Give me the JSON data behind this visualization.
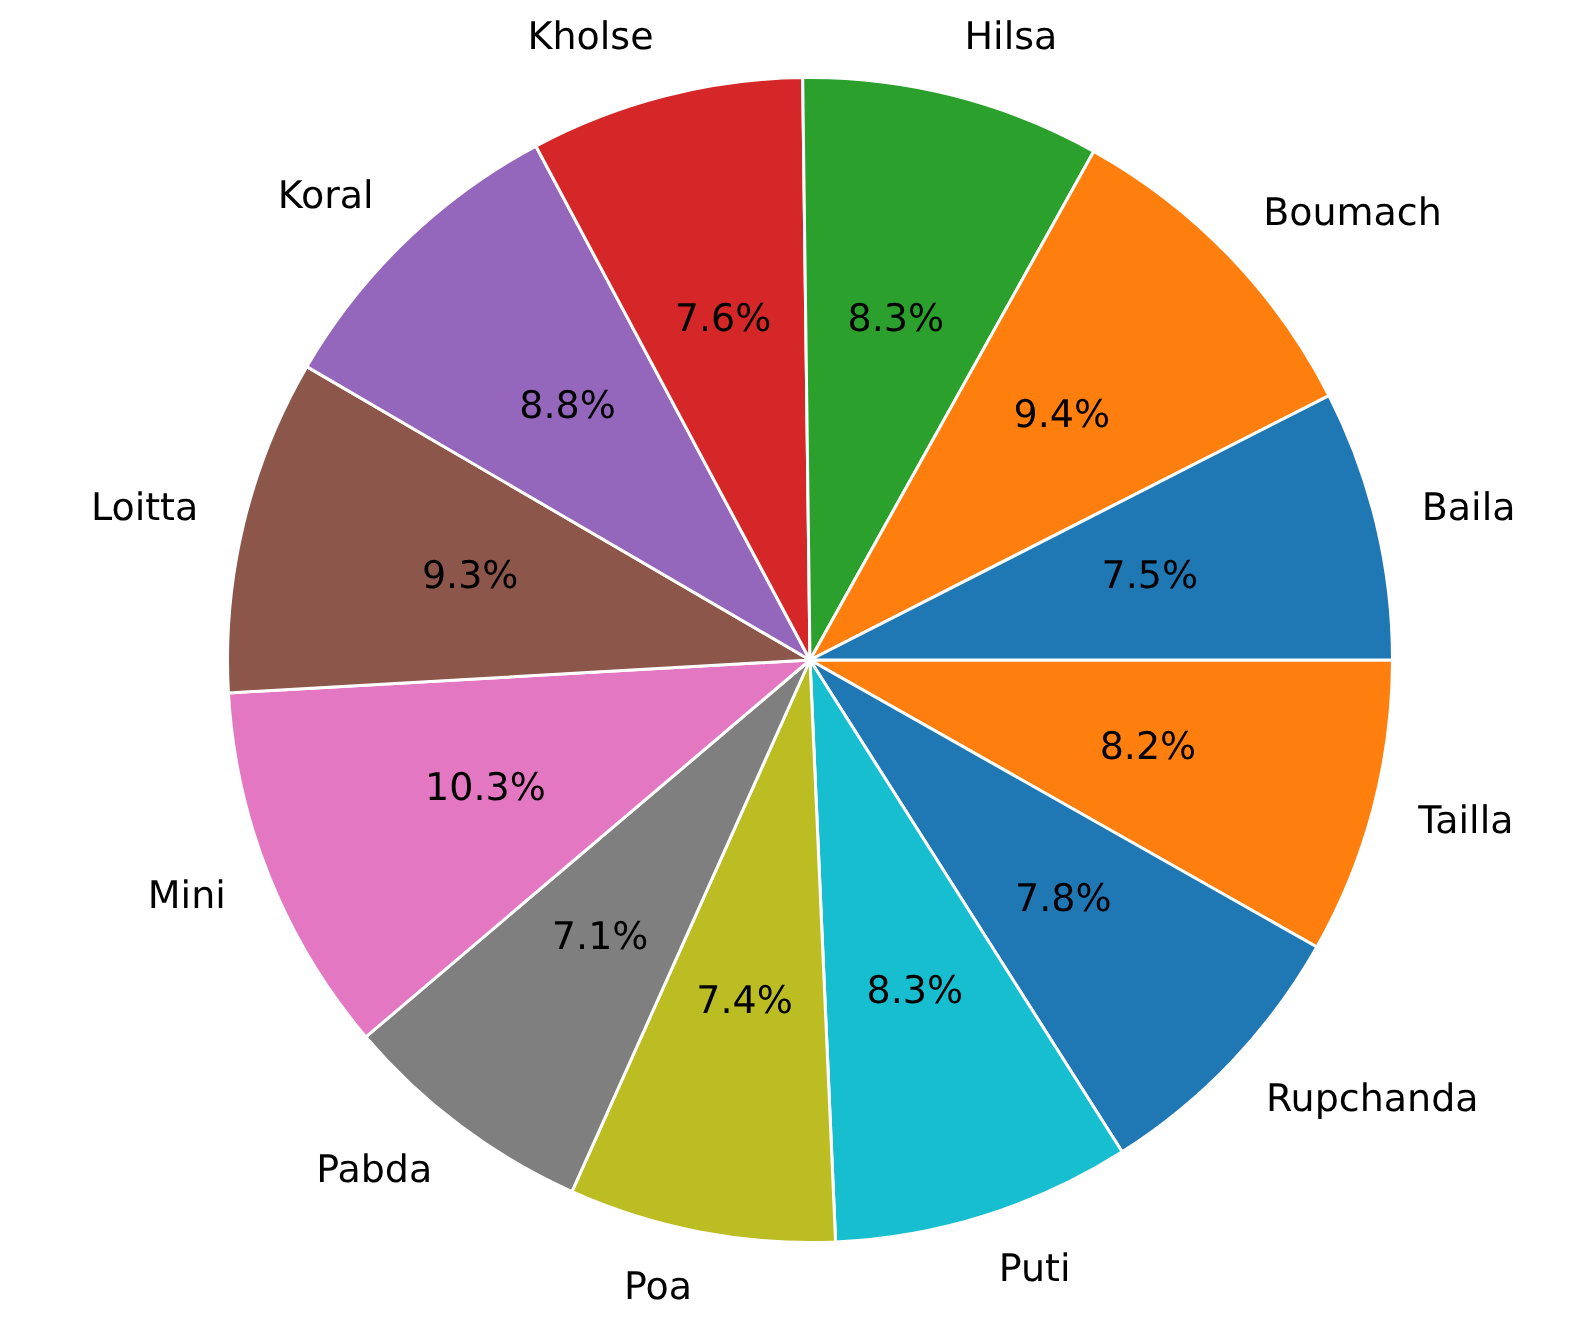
{
  "chart_data": {
    "type": "pie",
    "categories": [
      "Baila",
      "Boumach",
      "Hilsa",
      "Kholse",
      "Koral",
      "Loitta",
      "Mini",
      "Pabda",
      "Poa",
      "Puti",
      "Rupchanda",
      "Tailla"
    ],
    "values": [
      7.5,
      9.4,
      8.3,
      7.6,
      8.8,
      9.3,
      10.3,
      7.1,
      7.4,
      8.3,
      7.8,
      8.2
    ],
    "value_labels": [
      "7.5%",
      "9.4%",
      "8.3%",
      "7.6%",
      "8.8%",
      "9.3%",
      "10.3%",
      "7.1%",
      "7.4%",
      "8.3%",
      "7.8%",
      "8.2%"
    ],
    "colors": [
      "#1f77b4",
      "#ff7f0e",
      "#2ca02c",
      "#d62728",
      "#9467bd",
      "#8c564b",
      "#e377c2",
      "#7f7f7f",
      "#bcbd22",
      "#17becf",
      "#1f77b4",
      "#ff7f0e"
    ],
    "legend": false
  }
}
